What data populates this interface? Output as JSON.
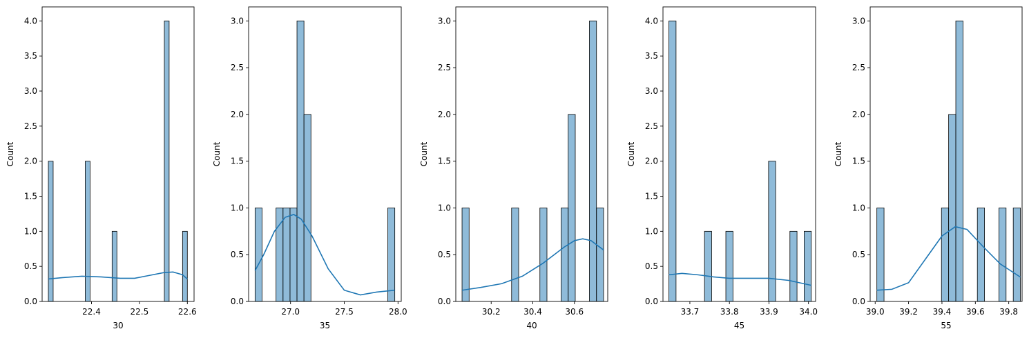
{
  "colors": {
    "bar_fill": "#1f77b4",
    "bar_edge": "#000000",
    "kde_line": "#1f77b4"
  },
  "chart_data": [
    {
      "type": "histogram",
      "xlabel": "30",
      "ylabel": "Count",
      "xlim": [
        22.297,
        22.614
      ],
      "ylim": [
        0,
        4.2
      ],
      "xticks": [
        22.4,
        22.5,
        22.6
      ],
      "xtick_labels": [
        "22.4",
        "22.5",
        "22.6"
      ],
      "yticks": [
        0,
        0.5,
        1.0,
        1.5,
        2.0,
        2.5,
        3.0,
        3.5,
        4.0
      ],
      "ytick_labels": [
        "0.0",
        "0.5",
        "1.0",
        "1.5",
        "2.0",
        "2.5",
        "3.0",
        "3.5",
        "4.0"
      ],
      "bins": [
        {
          "x0": 22.31,
          "x1": 22.32,
          "count": 2
        },
        {
          "x0": 22.387,
          "x1": 22.397,
          "count": 2
        },
        {
          "x0": 22.443,
          "x1": 22.453,
          "count": 1
        },
        {
          "x0": 22.552,
          "x1": 22.562,
          "count": 4
        },
        {
          "x0": 22.59,
          "x1": 22.6,
          "count": 1
        }
      ],
      "kde": [
        [
          22.31,
          0.32
        ],
        [
          22.34,
          0.34
        ],
        [
          22.38,
          0.36
        ],
        [
          22.42,
          0.35
        ],
        [
          22.46,
          0.33
        ],
        [
          22.49,
          0.33
        ],
        [
          22.52,
          0.37
        ],
        [
          22.55,
          0.41
        ],
        [
          22.57,
          0.42
        ],
        [
          22.59,
          0.38
        ],
        [
          22.6,
          0.32
        ]
      ]
    },
    {
      "type": "histogram",
      "xlabel": "35",
      "ylabel": "Count",
      "xlim": [
        26.61,
        28.03
      ],
      "ylim": [
        0,
        3.15
      ],
      "xticks": [
        27.0,
        27.5,
        28.0
      ],
      "xtick_labels": [
        "27.0",
        "27.5",
        "28.0"
      ],
      "yticks": [
        0,
        0.5,
        1.0,
        1.5,
        2.0,
        2.5,
        3.0
      ],
      "ytick_labels": [
        "0.0",
        "0.5",
        "1.0",
        "1.5",
        "2.0",
        "2.5",
        "3.0"
      ],
      "bins": [
        {
          "x0": 26.67,
          "x1": 26.735,
          "count": 1
        },
        {
          "x0": 26.865,
          "x1": 26.93,
          "count": 1
        },
        {
          "x0": 26.93,
          "x1": 26.995,
          "count": 1
        },
        {
          "x0": 26.995,
          "x1": 27.06,
          "count": 1
        },
        {
          "x0": 27.06,
          "x1": 27.125,
          "count": 3
        },
        {
          "x0": 27.125,
          "x1": 27.19,
          "count": 2
        },
        {
          "x0": 27.905,
          "x1": 27.97,
          "count": 1
        }
      ],
      "kde": [
        [
          26.67,
          0.33
        ],
        [
          26.75,
          0.5
        ],
        [
          26.85,
          0.75
        ],
        [
          26.95,
          0.9
        ],
        [
          27.03,
          0.93
        ],
        [
          27.1,
          0.88
        ],
        [
          27.2,
          0.7
        ],
        [
          27.35,
          0.35
        ],
        [
          27.5,
          0.12
        ],
        [
          27.65,
          0.07
        ],
        [
          27.8,
          0.1
        ],
        [
          27.97,
          0.12
        ]
      ]
    },
    {
      "type": "histogram",
      "xlabel": "40",
      "ylabel": "Count",
      "xlim": [
        30.03,
        30.76
      ],
      "ylim": [
        0,
        3.15
      ],
      "xticks": [
        30.2,
        30.4,
        30.6
      ],
      "xtick_labels": [
        "30.2",
        "30.4",
        "30.6"
      ],
      "yticks": [
        0,
        0.5,
        1.0,
        1.5,
        2.0,
        2.5,
        3.0
      ],
      "ytick_labels": [
        "0.0",
        "0.5",
        "1.0",
        "1.5",
        "2.0",
        "2.5",
        "3.0"
      ],
      "bins": [
        {
          "x0": 30.06,
          "x1": 30.094,
          "count": 1
        },
        {
          "x0": 30.298,
          "x1": 30.332,
          "count": 1
        },
        {
          "x0": 30.434,
          "x1": 30.468,
          "count": 1
        },
        {
          "x0": 30.536,
          "x1": 30.57,
          "count": 1
        },
        {
          "x0": 30.57,
          "x1": 30.604,
          "count": 2
        },
        {
          "x0": 30.672,
          "x1": 30.706,
          "count": 3
        },
        {
          "x0": 30.706,
          "x1": 30.74,
          "count": 1
        }
      ],
      "kde": [
        [
          30.06,
          0.12
        ],
        [
          30.15,
          0.15
        ],
        [
          30.25,
          0.19
        ],
        [
          30.35,
          0.27
        ],
        [
          30.45,
          0.41
        ],
        [
          30.55,
          0.58
        ],
        [
          30.6,
          0.65
        ],
        [
          30.64,
          0.67
        ],
        [
          30.68,
          0.65
        ],
        [
          30.74,
          0.55
        ]
      ]
    },
    {
      "type": "histogram",
      "xlabel": "45",
      "ylabel": "Count",
      "xlim": [
        33.632,
        34.018
      ],
      "ylim": [
        0,
        4.2
      ],
      "xticks": [
        33.7,
        33.8,
        33.9,
        34.0
      ],
      "xtick_labels": [
        "33.7",
        "33.8",
        "33.9",
        "34.0"
      ],
      "yticks": [
        0,
        0.5,
        1.0,
        1.5,
        2.0,
        2.5,
        3.0,
        3.5,
        4.0
      ],
      "ytick_labels": [
        "0.0",
        "0.5",
        "1.0",
        "1.5",
        "2.0",
        "2.5",
        "3.0",
        "3.5",
        "4.0"
      ],
      "bins": [
        {
          "x0": 33.647,
          "x1": 33.665,
          "count": 4
        },
        {
          "x0": 33.737,
          "x1": 33.755,
          "count": 1
        },
        {
          "x0": 33.791,
          "x1": 33.809,
          "count": 1
        },
        {
          "x0": 33.899,
          "x1": 33.917,
          "count": 2
        },
        {
          "x0": 33.953,
          "x1": 33.971,
          "count": 1
        },
        {
          "x0": 33.989,
          "x1": 34.007,
          "count": 1
        }
      ],
      "kde": [
        [
          33.647,
          0.38
        ],
        [
          33.68,
          0.4
        ],
        [
          33.72,
          0.38
        ],
        [
          33.76,
          0.35
        ],
        [
          33.8,
          0.33
        ],
        [
          33.85,
          0.33
        ],
        [
          33.9,
          0.33
        ],
        [
          33.95,
          0.3
        ],
        [
          34.007,
          0.23
        ]
      ]
    },
    {
      "type": "histogram",
      "xlabel": "55",
      "ylabel": "Count",
      "xlim": [
        38.97,
        39.88
      ],
      "ylim": [
        0,
        3.15
      ],
      "xticks": [
        39.0,
        39.2,
        39.4,
        39.6,
        39.8
      ],
      "xtick_labels": [
        "39.0",
        "39.2",
        "39.4",
        "39.6",
        "39.8"
      ],
      "yticks": [
        0,
        0.5,
        1.0,
        1.5,
        2.0,
        2.5,
        3.0
      ],
      "ytick_labels": [
        "0.0",
        "0.5",
        "1.0",
        "1.5",
        "2.0",
        "2.5",
        "3.0"
      ],
      "bins": [
        {
          "x0": 39.01,
          "x1": 39.053,
          "count": 1
        },
        {
          "x0": 39.397,
          "x1": 39.44,
          "count": 1
        },
        {
          "x0": 39.44,
          "x1": 39.483,
          "count": 2
        },
        {
          "x0": 39.483,
          "x1": 39.526,
          "count": 3
        },
        {
          "x0": 39.612,
          "x1": 39.655,
          "count": 1
        },
        {
          "x0": 39.741,
          "x1": 39.784,
          "count": 1
        },
        {
          "x0": 39.827,
          "x1": 39.87,
          "count": 1
        }
      ],
      "kde": [
        [
          39.01,
          0.12
        ],
        [
          39.1,
          0.13
        ],
        [
          39.2,
          0.2
        ],
        [
          39.3,
          0.45
        ],
        [
          39.4,
          0.7
        ],
        [
          39.48,
          0.8
        ],
        [
          39.55,
          0.77
        ],
        [
          39.65,
          0.58
        ],
        [
          39.75,
          0.4
        ],
        [
          39.87,
          0.26
        ]
      ]
    }
  ]
}
